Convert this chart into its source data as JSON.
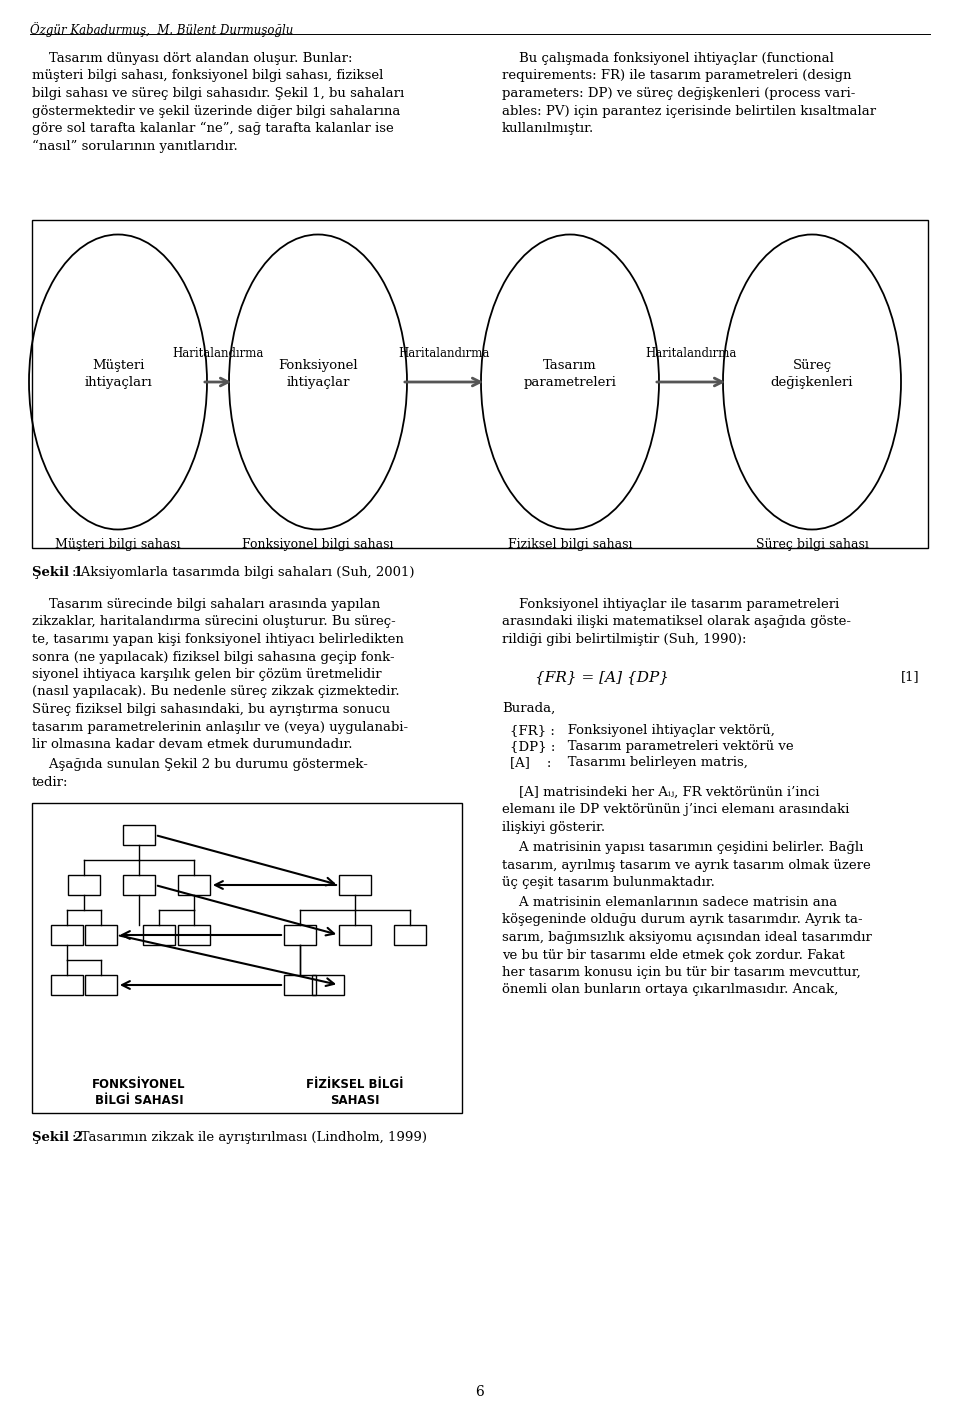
{
  "page_bg": "#ffffff",
  "text_color": "#000000",
  "header_author": "Özgür Kabadurmuş,  M. Bülent Durmuşoğlu",
  "diagram1": {
    "ovals": [
      {
        "label_top": "Müşteri\nihtiyaçları",
        "label_bot": "Müşteri bilgi sahası"
      },
      {
        "label_top": "Fonksiyonel\nihtiyaçlar",
        "label_bot": "Fonksiyonel bilgi sahası"
      },
      {
        "label_top": "Tasarım\nparametreleri",
        "label_bot": "Fiziksel bilgi sahası"
      },
      {
        "label_top": "Süreç\ndeğişkenleri",
        "label_bot": "Süreç bilgi sahası"
      }
    ],
    "arrows": [
      "Haritalandırma",
      "Haritalandırma",
      "Haritalandırma"
    ],
    "caption_bold": "Şekil 1",
    "caption_rest": ": Aksiyomlarla tasarımda bilgi sahaları (Suh, 2001)"
  },
  "diagram2": {
    "caption_bold": "Şekil 2",
    "caption_rest": ": Tasarımın zikzak ile ayrıştırılması (Lindholm, 1999)",
    "label_left": "FONKSİYONEL\nBİLGİ SAHASI",
    "label_right": "FİZİKSEL BİLGİ\nSAHASI"
  },
  "page_number": "6"
}
